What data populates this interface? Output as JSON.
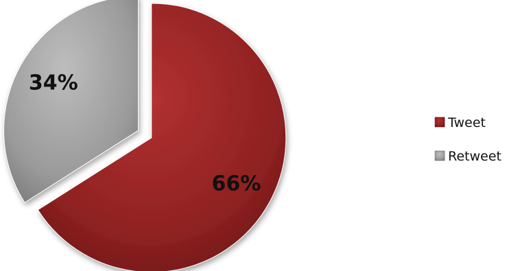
{
  "chart_data": {
    "type": "pie",
    "exploded": true,
    "legend_position": "right",
    "slices": [
      {
        "name": "Tweet",
        "value": 66,
        "label": "66%",
        "color": "#8e2121"
      },
      {
        "name": "Retweet",
        "value": 34,
        "label": "34%",
        "color": "#9a9a9a"
      }
    ]
  }
}
